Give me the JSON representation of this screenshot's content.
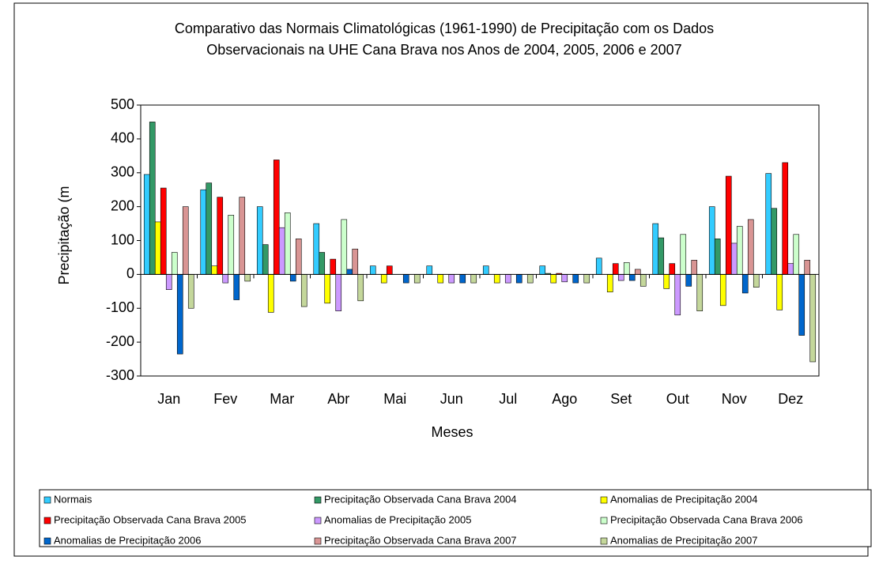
{
  "chart_data": {
    "type": "bar",
    "title": [
      "Comparativo das Normais Climatológicas (1961-1990) de Precipitação com os Dados",
      "Observacionais na UHE Cana Brava nos Anos de 2004, 2005, 2006 e 2007"
    ],
    "x_label": "Meses",
    "y_label": "Precipitação (m",
    "categories": [
      "Jan",
      "Fev",
      "Mar",
      "Abr",
      "Mai",
      "Jun",
      "Jul",
      "Ago",
      "Set",
      "Out",
      "Nov",
      "Dez"
    ],
    "ylim": [
      -300,
      500
    ],
    "yticks": [
      -300,
      -200,
      -100,
      0,
      100,
      200,
      300,
      400,
      500
    ],
    "grid": false,
    "legend": "bottom",
    "series": [
      {
        "name": "Normais",
        "color": "#33ccff",
        "values": [
          295,
          250,
          200,
          150,
          25,
          25,
          25,
          25,
          48,
          150,
          200,
          298
        ]
      },
      {
        "name": "Precipitação Observada Cana Brava 2004",
        "color": "#339966",
        "values": [
          450,
          270,
          88,
          65,
          0,
          0,
          0,
          3,
          0,
          108,
          105,
          195
        ]
      },
      {
        "name": "Anomalias de Precipitação 2004",
        "color": "#ffff00",
        "values": [
          155,
          25,
          -112,
          -85,
          -25,
          -25,
          -25,
          -25,
          -52,
          -42,
          -92,
          -105
        ]
      },
      {
        "name": "Precipitação Observada Cana Brava 2005",
        "color": "#ff0000",
        "values": [
          255,
          228,
          338,
          45,
          25,
          0,
          0,
          3,
          32,
          32,
          290,
          330
        ]
      },
      {
        "name": "Anomalias de Precipitação 2005",
        "color": "#cc99ff",
        "values": [
          -45,
          -25,
          138,
          -108,
          0,
          -25,
          -25,
          -22,
          -18,
          -120,
          92,
          32
        ]
      },
      {
        "name": "Precipitação Observada Cana Brava 2006",
        "color": "#ccffcc",
        "values": [
          65,
          175,
          182,
          162,
          0,
          0,
          0,
          0,
          35,
          118,
          142,
          118
        ]
      },
      {
        "name": "Anomalias de Precipitação 2006",
        "color": "#0066cc",
        "values": [
          -235,
          -75,
          -20,
          15,
          -25,
          -25,
          -25,
          -25,
          -18,
          -35,
          -55,
          -180
        ]
      },
      {
        "name": "Precipitação Observada Cana Brava 2007",
        "color": "#d99594",
        "values": [
          200,
          228,
          105,
          75,
          0,
          0,
          0,
          0,
          15,
          42,
          162,
          42
        ]
      },
      {
        "name": "Anomalias de Precipitação 2007",
        "color": "#c4d79b",
        "values": [
          -100,
          -20,
          -95,
          -78,
          -25,
          -25,
          -25,
          -25,
          -35,
          -108,
          -38,
          -258
        ]
      }
    ]
  }
}
